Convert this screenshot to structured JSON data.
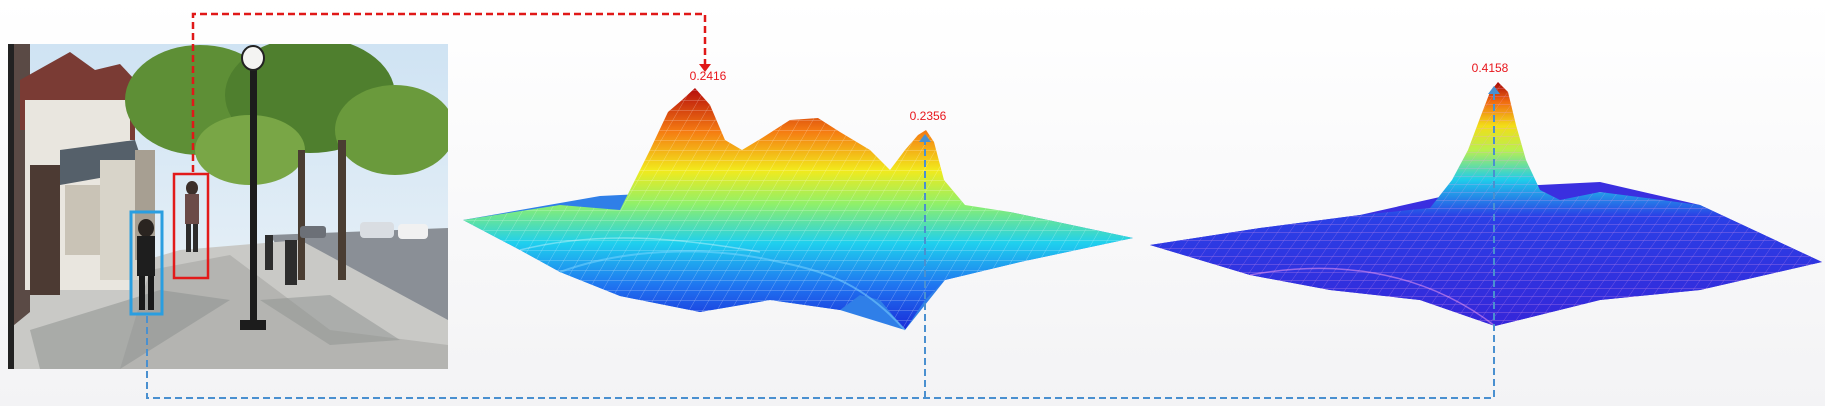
{
  "peaks": {
    "response_map_1": {
      "left_peak": {
        "value": "0.2416",
        "color": "#e8161c"
      },
      "right_peak": {
        "value": "0.2356",
        "color": "#e8161c"
      }
    },
    "response_map_2": {
      "peak": {
        "value": "0.4158",
        "color": "#e8161c"
      }
    }
  },
  "bounding_boxes": {
    "red_target": {
      "color": "#e21a1a"
    },
    "blue_target": {
      "color": "#2a9ee0"
    }
  },
  "connectors": {
    "red_color": "#e01818",
    "blue_color": "#4a90d0"
  }
}
